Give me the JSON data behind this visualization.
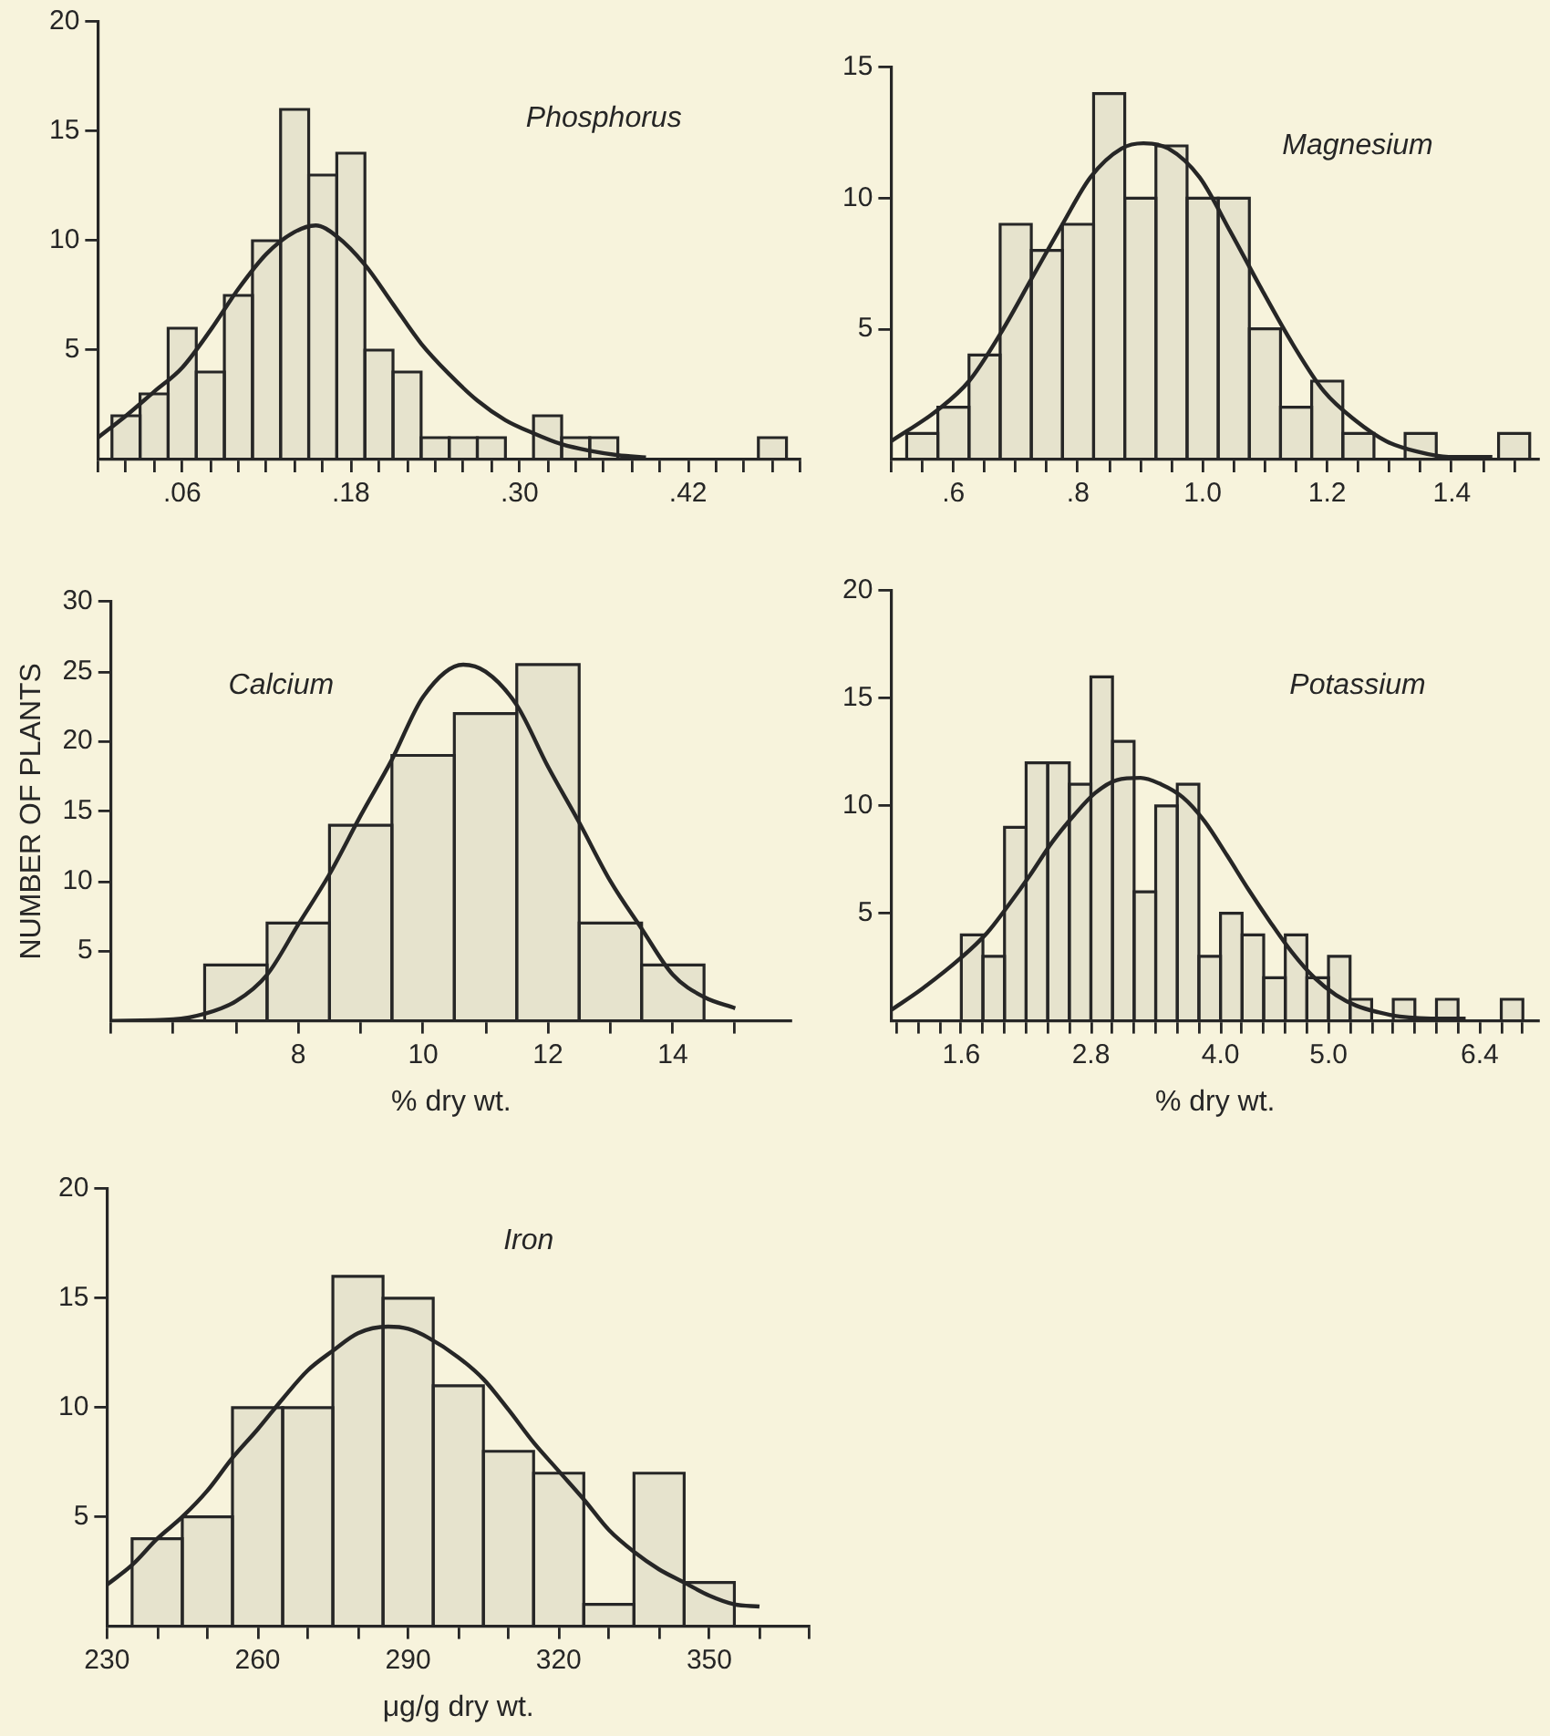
{
  "chart_data": [
    {
      "type": "histogram",
      "title": "Phosphorus",
      "color": "#262626",
      "marker": "none",
      "bins": [
        0.01,
        0.03,
        0.05,
        0.07,
        0.09,
        0.11,
        0.13,
        0.15,
        0.17,
        0.19,
        0.21,
        0.23,
        0.25,
        0.27,
        0.29,
        0.31,
        0.33,
        0.35,
        0.37,
        0.39,
        0.41,
        0.43,
        0.45,
        0.47,
        0.49
      ],
      "values": [
        2,
        3,
        6,
        4,
        7.5,
        10,
        16,
        13,
        14,
        5,
        4,
        1,
        1,
        1,
        0,
        2,
        1,
        1,
        0,
        0,
        0,
        0,
        0,
        1
      ],
      "series": [
        {
          "type": "line",
          "color": "#262626",
          "x": [
            0,
            0.02,
            0.04,
            0.06,
            0.08,
            0.1,
            0.12,
            0.14,
            0.155,
            0.17,
            0.19,
            0.21,
            0.23,
            0.25,
            0.27,
            0.29,
            0.31,
            0.33,
            0.35,
            0.37,
            0.39
          ],
          "values": [
            1.0,
            2.0,
            3.1,
            4.2,
            5.9,
            7.8,
            9.4,
            10.4,
            10.7,
            10.2,
            8.9,
            7.1,
            5.3,
            3.9,
            2.7,
            1.8,
            1.2,
            0.7,
            0.4,
            0.2,
            0.1
          ]
        }
      ],
      "xlim": [
        0,
        0.5
      ],
      "ylim": [
        0,
        20
      ],
      "yticks": [
        5,
        10,
        15,
        20
      ],
      "xticks": [
        {
          "value": 0,
          "label": null
        },
        {
          "value": 0.02,
          "label": null
        },
        {
          "value": 0.04,
          "label": null
        },
        {
          "value": 0.06,
          "label": ".06"
        },
        {
          "value": 0.08,
          "label": null
        },
        {
          "value": 0.1,
          "label": null
        },
        {
          "value": 0.12,
          "label": null
        },
        {
          "value": 0.14,
          "label": null
        },
        {
          "value": 0.16,
          "label": null
        },
        {
          "value": 0.18,
          "label": ".18"
        },
        {
          "value": 0.2,
          "label": null
        },
        {
          "value": 0.22,
          "label": null
        },
        {
          "value": 0.24,
          "label": null
        },
        {
          "value": 0.26,
          "label": null
        },
        {
          "value": 0.28,
          "label": null
        },
        {
          "value": 0.3,
          "label": ".30"
        },
        {
          "value": 0.32,
          "label": null
        },
        {
          "value": 0.34,
          "label": null
        },
        {
          "value": 0.36,
          "label": null
        },
        {
          "value": 0.38,
          "label": null
        },
        {
          "value": 0.4,
          "label": null
        },
        {
          "value": 0.42,
          "label": ".42"
        },
        {
          "value": 0.44,
          "label": null
        },
        {
          "value": 0.46,
          "label": null
        },
        {
          "value": 0.48,
          "label": null
        },
        {
          "value": 0.5,
          "label": null
        }
      ]
    },
    {
      "type": "histogram",
      "title": "Magnesium",
      "color": "#262626",
      "marker": "none",
      "bins": [
        0.525,
        0.575,
        0.625,
        0.675,
        0.725,
        0.775,
        0.825,
        0.875,
        0.925,
        0.975,
        1.025,
        1.075,
        1.125,
        1.175,
        1.225,
        1.275,
        1.325,
        1.375,
        1.425,
        1.475,
        1.525
      ],
      "values": [
        1,
        2,
        4,
        9,
        8,
        9,
        14,
        10,
        12,
        10,
        10,
        5,
        2,
        3,
        1,
        0,
        1,
        0,
        0,
        1
      ],
      "series": [
        {
          "type": "line",
          "color": "#262626",
          "x": [
            0.5,
            0.575,
            0.625,
            0.675,
            0.725,
            0.775,
            0.82,
            0.87,
            0.905,
            0.945,
            0.995,
            1.045,
            1.095,
            1.145,
            1.195,
            1.245,
            1.295,
            1.345,
            1.395,
            1.465
          ],
          "values": [
            0.7,
            1.9,
            3.0,
            4.8,
            6.9,
            9.0,
            10.8,
            11.9,
            12.1,
            11.9,
            10.8,
            8.7,
            6.5,
            4.4,
            2.6,
            1.5,
            0.7,
            0.3,
            0.1,
            0.1
          ]
        }
      ],
      "xlim": [
        0.5,
        1.54
      ],
      "ylim": [
        0,
        15
      ],
      "yticks": [
        5,
        10,
        15
      ],
      "xticks": [
        {
          "value": 0.5,
          "label": null
        },
        {
          "value": 0.55,
          "label": null
        },
        {
          "value": 0.6,
          "label": ".6"
        },
        {
          "value": 0.65,
          "label": null
        },
        {
          "value": 0.7,
          "label": null
        },
        {
          "value": 0.75,
          "label": null
        },
        {
          "value": 0.8,
          "label": ".8"
        },
        {
          "value": 0.85,
          "label": null
        },
        {
          "value": 0.9,
          "label": null
        },
        {
          "value": 0.95,
          "label": null
        },
        {
          "value": 1.0,
          "label": "1.0"
        },
        {
          "value": 1.05,
          "label": null
        },
        {
          "value": 1.1,
          "label": null
        },
        {
          "value": 1.15,
          "label": null
        },
        {
          "value": 1.2,
          "label": "1.2"
        },
        {
          "value": 1.25,
          "label": null
        },
        {
          "value": 1.3,
          "label": null
        },
        {
          "value": 1.35,
          "label": null
        },
        {
          "value": 1.4,
          "label": "1.4"
        },
        {
          "value": 1.45,
          "label": null
        },
        {
          "value": 1.5,
          "label": null
        }
      ]
    },
    {
      "type": "histogram",
      "title": "Calcium",
      "xlabel": "% dry wt.",
      "ylabel": "NUMBER OF PLANTS",
      "color": "#262626",
      "marker": "none",
      "bins": [
        6.5,
        7.5,
        8.5,
        9.5,
        10.5,
        11.5,
        12.5,
        13.5,
        14.5
      ],
      "values": [
        4,
        7,
        14,
        19,
        22,
        25.5,
        7,
        4
      ],
      "series": [
        {
          "type": "line",
          "color": "#262626",
          "x": [
            5,
            6,
            6.5,
            7,
            7.5,
            8,
            8.5,
            9,
            9.5,
            10,
            10.64,
            11,
            11.5,
            12,
            12.5,
            13,
            13.5,
            14,
            14.5,
            15
          ],
          "values": [
            0,
            0.1,
            0.5,
            1.4,
            3.3,
            6.9,
            10.5,
            14.7,
            18.7,
            23.2,
            25.5,
            25,
            22.6,
            18.2,
            14.2,
            10,
            6.6,
            3.3,
            1.7,
            0.9
          ]
        }
      ],
      "xlim": [
        5,
        15.9
      ],
      "ylim": [
        0,
        30
      ],
      "yticks": [
        5,
        10,
        15,
        20,
        25,
        30
      ],
      "xticks": [
        {
          "value": 5,
          "label": null
        },
        {
          "value": 6,
          "label": null
        },
        {
          "value": 7,
          "label": null
        },
        8,
        {
          "value": 9,
          "label": null
        },
        10,
        {
          "value": 11,
          "label": null
        },
        12,
        {
          "value": 13,
          "label": null
        },
        14,
        {
          "value": 15,
          "label": null
        }
      ]
    },
    {
      "type": "histogram",
      "title": "Potassium",
      "xlabel": "% dry wt.",
      "color": "#262626",
      "marker": "none",
      "bins": [
        1.6,
        1.8,
        2.0,
        2.2,
        2.4,
        2.6,
        2.8,
        3.0,
        3.2,
        3.4,
        3.6,
        3.8,
        4.0,
        4.2,
        4.4,
        4.6,
        4.8,
        5.0,
        5.2,
        5.4,
        5.6,
        5.8,
        6.0,
        6.2,
        6.4,
        6.6,
        6.8
      ],
      "values": [
        4,
        3,
        9,
        12,
        12,
        11,
        16,
        13,
        6,
        10,
        11,
        3,
        5,
        4,
        2,
        4,
        2,
        3,
        1,
        0,
        1,
        0,
        1,
        0,
        0,
        1
      ],
      "series": [
        {
          "type": "line",
          "color": "#262626",
          "x": [
            0.95,
            1.24,
            1.59,
            1.84,
            2.04,
            2.24,
            2.44,
            2.65,
            2.84,
            3.04,
            3.26,
            3.45,
            3.65,
            3.85,
            4.06,
            4.26,
            4.46,
            4.66,
            4.87,
            5.07,
            5.26,
            5.46,
            5.66,
            6.07,
            6.27
          ],
          "values": [
            0.5,
            1.5,
            2.9,
            4.1,
            5.4,
            6.8,
            8.3,
            9.6,
            10.6,
            11.2,
            11.3,
            11.0,
            10.4,
            9.3,
            7.7,
            6.1,
            4.6,
            3.2,
            2.0,
            1.2,
            0.7,
            0.4,
            0.2,
            0.1,
            0.1
          ]
        }
      ],
      "xlim": [
        0.95,
        6.95
      ],
      "ylim": [
        0,
        20
      ],
      "yticks": [
        5,
        10,
        15,
        20
      ],
      "xticks": [
        {
          "value": 1.0,
          "label": null
        },
        {
          "value": 1.2,
          "label": null
        },
        {
          "value": 1.4,
          "label": null
        },
        {
          "value": 1.6,
          "label": "1.6"
        },
        {
          "value": 1.8,
          "label": null
        },
        {
          "value": 2.0,
          "label": null
        },
        {
          "value": 2.2,
          "label": null
        },
        {
          "value": 2.4,
          "label": null
        },
        {
          "value": 2.6,
          "label": null
        },
        {
          "value": 2.8,
          "label": "2.8"
        },
        {
          "value": 3.0,
          "label": null
        },
        {
          "value": 3.2,
          "label": null
        },
        {
          "value": 3.4,
          "label": null
        },
        {
          "value": 3.6,
          "label": null
        },
        {
          "value": 3.8,
          "label": null
        },
        {
          "value": 4.0,
          "label": "4.0"
        },
        {
          "value": 4.2,
          "label": null
        },
        {
          "value": 4.4,
          "label": null
        },
        {
          "value": 4.6,
          "label": null
        },
        {
          "value": 4.8,
          "label": null
        },
        {
          "value": 5.0,
          "label": "5.0"
        },
        {
          "value": 5.2,
          "label": null
        },
        {
          "value": 5.4,
          "label": null
        },
        {
          "value": 5.6,
          "label": null
        },
        {
          "value": 5.8,
          "label": null
        },
        {
          "value": 6.0,
          "label": null
        },
        {
          "value": 6.2,
          "label": null
        },
        {
          "value": 6.4,
          "label": "6.4"
        },
        {
          "value": 6.6,
          "label": null
        },
        {
          "value": 6.8,
          "label": null
        }
      ]
    },
    {
      "type": "histogram",
      "title": "Iron",
      "xlabel": "μg/g dry wt.",
      "color": "#262626",
      "marker": "none",
      "bins": [
        235,
        245,
        255,
        265,
        275,
        285,
        295,
        305,
        315,
        325,
        335,
        345,
        355
      ],
      "values": [
        4,
        5,
        10,
        10,
        16,
        15,
        11,
        8,
        7,
        1,
        7,
        2
      ],
      "series": [
        {
          "type": "line",
          "color": "#262626",
          "x": [
            230,
            235,
            240,
            245,
            250,
            255,
            260,
            265,
            270,
            275,
            280,
            286,
            290,
            294,
            300,
            305,
            310,
            315,
            320,
            325,
            330,
            335,
            340,
            345,
            350,
            355,
            360
          ],
          "values": [
            1.9,
            2.8,
            4.0,
            5.0,
            6.2,
            7.7,
            9.0,
            10.4,
            11.7,
            12.6,
            13.4,
            13.7,
            13.6,
            13.2,
            12.3,
            11.3,
            9.9,
            8.4,
            7.1,
            5.8,
            4.4,
            3.4,
            2.6,
            2.0,
            1.4,
            1.0,
            0.9
          ]
        }
      ],
      "xlim": [
        230,
        370
      ],
      "ylim": [
        0,
        20
      ],
      "yticks": [
        5,
        10,
        15,
        20
      ],
      "xticks": [
        230,
        {
          "value": 240,
          "label": null
        },
        {
          "value": 250,
          "label": null
        },
        260,
        {
          "value": 270,
          "label": null
        },
        {
          "value": 280,
          "label": null
        },
        290,
        {
          "value": 300,
          "label": null
        },
        {
          "value": 310,
          "label": null
        },
        320,
        {
          "value": 330,
          "label": null
        },
        {
          "value": 340,
          "label": null
        },
        350,
        {
          "value": 360,
          "label": null
        },
        {
          "value": 370,
          "label": null
        }
      ]
    }
  ]
}
